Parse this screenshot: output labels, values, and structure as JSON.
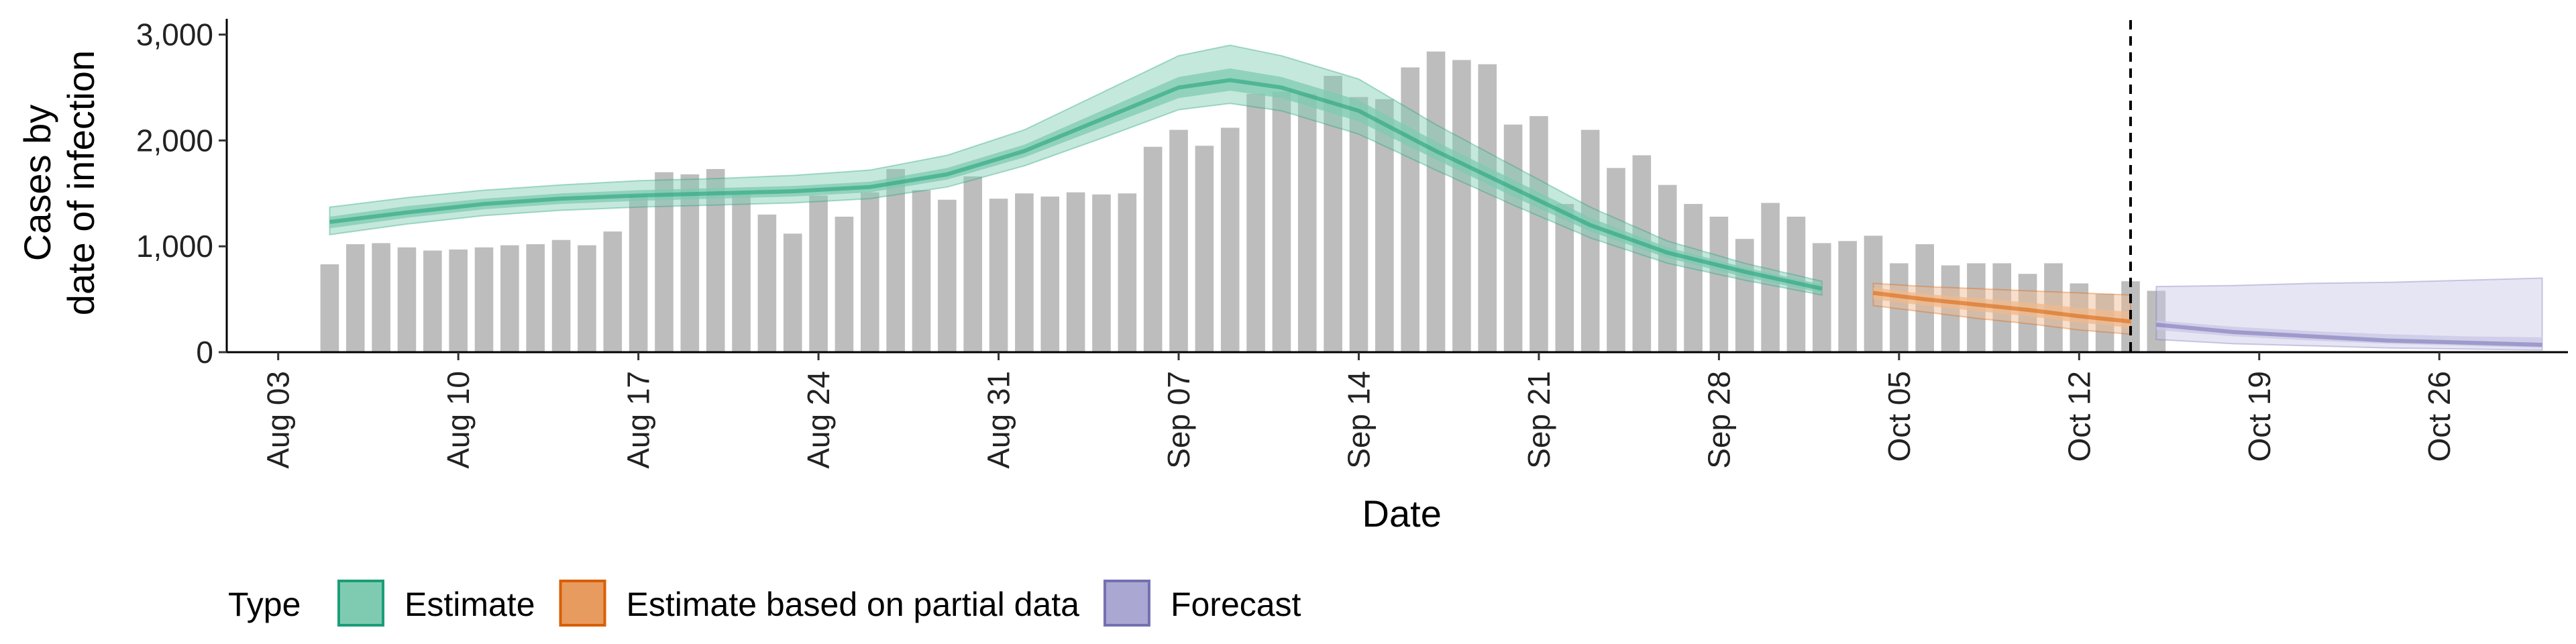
{
  "chart_data": {
    "type": "bar",
    "title": "",
    "xlabel": "Date",
    "ylabel_lines": [
      "Cases by",
      "date of infection"
    ],
    "ylim": [
      0,
      3200
    ],
    "yticks": [
      {
        "value": 0,
        "label": "0"
      },
      {
        "value": 1000,
        "label": "1,000"
      },
      {
        "value": 2000,
        "label": "2,000"
      },
      {
        "value": 3000,
        "label": "3,000"
      }
    ],
    "xticks": [
      {
        "date": "2020-08-03",
        "label": "Aug 03"
      },
      {
        "date": "2020-08-10",
        "label": "Aug 10"
      },
      {
        "date": "2020-08-17",
        "label": "Aug 17"
      },
      {
        "date": "2020-08-24",
        "label": "Aug 24"
      },
      {
        "date": "2020-08-31",
        "label": "Aug 31"
      },
      {
        "date": "2020-09-07",
        "label": "Sep 07"
      },
      {
        "date": "2020-09-14",
        "label": "Sep 14"
      },
      {
        "date": "2020-09-21",
        "label": "Sep 21"
      },
      {
        "date": "2020-09-28",
        "label": "Sep 28"
      },
      {
        "date": "2020-10-05",
        "label": "Oct 05"
      },
      {
        "date": "2020-10-12",
        "label": "Oct 12"
      },
      {
        "date": "2020-10-19",
        "label": "Oct 19"
      },
      {
        "date": "2020-10-26",
        "label": "Oct 26"
      }
    ],
    "xlim": [
      "2020-08-01",
      "2020-10-31"
    ],
    "bars": {
      "name": "Reported cases",
      "color": "#bdbdbd",
      "start_date": "2020-08-05",
      "values": [
        830,
        1020,
        1030,
        990,
        960,
        970,
        990,
        1010,
        1020,
        1060,
        1010,
        1140,
        1480,
        1700,
        1680,
        1730,
        1490,
        1300,
        1120,
        1480,
        1280,
        1510,
        1730,
        1530,
        1440,
        1660,
        1450,
        1500,
        1470,
        1510,
        1490,
        1500,
        1940,
        2100,
        1950,
        2120,
        2440,
        2460,
        2440,
        2610,
        2410,
        2390,
        2690,
        2840,
        2760,
        2720,
        2150,
        2230,
        1400,
        2100,
        1740,
        1860,
        1580,
        1400,
        1280,
        1070,
        1410,
        1280,
        1030,
        1050,
        1100,
        840,
        1020,
        820,
        840,
        840,
        740,
        840,
        650,
        550,
        670,
        580
      ]
    },
    "vline": {
      "date": "2020-10-14",
      "style": "dashed",
      "color": "#000000"
    },
    "series": [
      {
        "name": "Estimate",
        "color": "#1b9e77",
        "fill": "#7fcbb2",
        "dates": [
          "2020-08-05",
          "2020-08-08",
          "2020-08-11",
          "2020-08-14",
          "2020-08-17",
          "2020-08-20",
          "2020-08-23",
          "2020-08-26",
          "2020-08-29",
          "2020-09-01",
          "2020-09-04",
          "2020-09-07",
          "2020-09-09",
          "2020-09-11",
          "2020-09-14",
          "2020-09-17",
          "2020-09-20",
          "2020-09-23",
          "2020-09-26",
          "2020-09-29",
          "2020-10-02"
        ],
        "median": [
          1230,
          1320,
          1400,
          1450,
          1480,
          1500,
          1520,
          1560,
          1680,
          1900,
          2200,
          2500,
          2570,
          2500,
          2280,
          1900,
          1550,
          1200,
          940,
          760,
          600
        ],
        "lower_50": [
          1170,
          1270,
          1350,
          1400,
          1430,
          1450,
          1470,
          1510,
          1630,
          1840,
          2120,
          2400,
          2470,
          2400,
          2180,
          1820,
          1470,
          1140,
          890,
          710,
          560
        ],
        "upper_50": [
          1280,
          1380,
          1450,
          1500,
          1530,
          1550,
          1570,
          1610,
          1740,
          1960,
          2280,
          2600,
          2680,
          2600,
          2380,
          1990,
          1630,
          1270,
          990,
          800,
          640
        ],
        "lower_90": [
          1110,
          1210,
          1290,
          1340,
          1370,
          1390,
          1410,
          1450,
          1560,
          1760,
          2020,
          2290,
          2350,
          2280,
          2060,
          1720,
          1390,
          1080,
          840,
          680,
          540
        ],
        "upper_90": [
          1370,
          1460,
          1530,
          1580,
          1620,
          1640,
          1670,
          1720,
          1860,
          2100,
          2450,
          2800,
          2900,
          2800,
          2580,
          2150,
          1760,
          1370,
          1050,
          840,
          670
        ]
      },
      {
        "name": "Estimate based on partial data",
        "color": "#d95f02",
        "fill": "#efb98d",
        "dates": [
          "2020-10-04",
          "2020-10-06",
          "2020-10-08",
          "2020-10-10",
          "2020-10-12",
          "2020-10-14"
        ],
        "median": [
          560,
          500,
          450,
          400,
          340,
          290
        ],
        "lower_50": [
          500,
          440,
          390,
          340,
          280,
          230
        ],
        "upper_50": [
          610,
          550,
          510,
          470,
          420,
          380
        ],
        "lower_90": [
          440,
          380,
          320,
          270,
          210,
          170
        ],
        "upper_90": [
          650,
          620,
          600,
          580,
          560,
          540
        ]
      },
      {
        "name": "Forecast",
        "color": "#7570b3",
        "fill": "#c8c6e6",
        "dates": [
          "2020-10-15",
          "2020-10-18",
          "2020-10-21",
          "2020-10-24",
          "2020-10-27",
          "2020-10-30"
        ],
        "median": [
          260,
          190,
          150,
          110,
          90,
          70
        ],
        "lower_50": [
          210,
          150,
          110,
          80,
          60,
          40
        ],
        "upper_50": [
          300,
          240,
          200,
          170,
          150,
          140
        ],
        "lower_90": [
          120,
          80,
          60,
          40,
          30,
          20
        ],
        "upper_90": [
          620,
          630,
          650,
          660,
          680,
          700
        ]
      }
    ],
    "legend": {
      "title": "Type",
      "position": "bottom-left",
      "items": [
        {
          "label": "Estimate",
          "color": "#1b9e77",
          "fill": "#7fcbb2"
        },
        {
          "label": "Estimate based on partial data",
          "color": "#d95f02",
          "fill": "#e89b5f"
        },
        {
          "label": "Forecast",
          "color": "#7570b3",
          "fill": "#aaa7d2"
        }
      ]
    }
  }
}
